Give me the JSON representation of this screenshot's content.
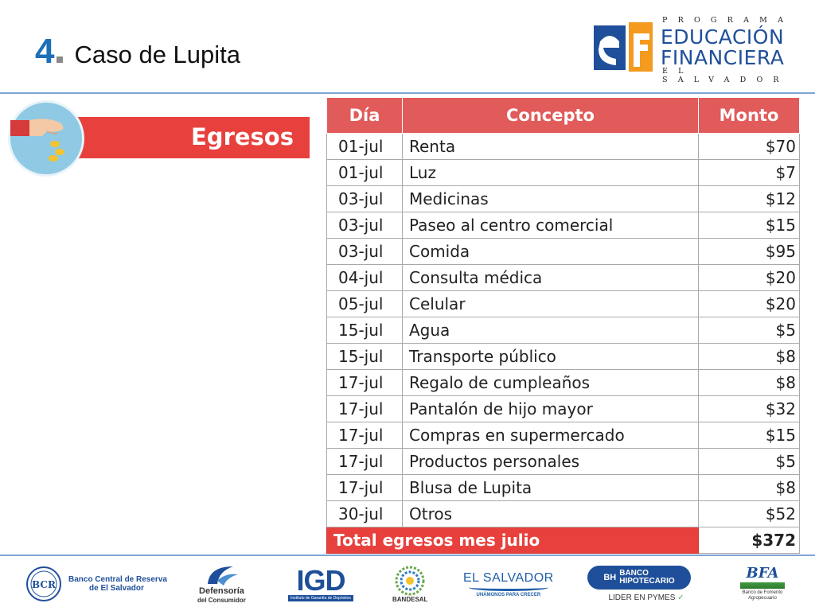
{
  "header": {
    "number": "4",
    "title": "Caso de Lupita"
  },
  "logo": {
    "top_line": "PROGRAMA",
    "line1": "EDUCACIÓN",
    "line2": "FINANCIERA",
    "bottom_line": "EL SALVADOR"
  },
  "banner": {
    "label": "Egresos"
  },
  "table": {
    "headers": [
      "Día",
      "Concepto",
      "Monto"
    ],
    "rows": [
      {
        "day": "01-jul",
        "concept": "Renta",
        "amount": "$70"
      },
      {
        "day": "01-jul",
        "concept": "Luz",
        "amount": "$7"
      },
      {
        "day": "03-jul",
        "concept": "Medicinas",
        "amount": "$12"
      },
      {
        "day": "03-jul",
        "concept": "Paseo al centro comercial",
        "amount": "$15"
      },
      {
        "day": "03-jul",
        "concept": "Comida",
        "amount": "$95"
      },
      {
        "day": "04-jul",
        "concept": "Consulta médica",
        "amount": "$20"
      },
      {
        "day": "05-jul",
        "concept": "Celular",
        "amount": "$20"
      },
      {
        "day": "15-jul",
        "concept": "Agua",
        "amount": "$5"
      },
      {
        "day": "15-jul",
        "concept": "Transporte público",
        "amount": "$8"
      },
      {
        "day": "17-jul",
        "concept": "Regalo de cumpleaños",
        "amount": "$8"
      },
      {
        "day": "17-jul",
        "concept": "Pantalón de hijo mayor",
        "amount": "$32"
      },
      {
        "day": "17-jul",
        "concept": "Compras en supermercado",
        "amount": "$15"
      },
      {
        "day": "17-jul",
        "concept": "Productos personales",
        "amount": "$5"
      },
      {
        "day": "17-jul",
        "concept": "Blusa de Lupita",
        "amount": "$8"
      },
      {
        "day": "30-jul",
        "concept": "Otros",
        "amount": "$52"
      }
    ],
    "total_label": "Total egresos mes julio",
    "total_amount": "$372"
  },
  "footer": {
    "bcr": {
      "mark": "BCR",
      "line1": "Banco Central de Reserva",
      "line2": "de El Salvador"
    },
    "defensoria": {
      "line1": "Defensoría",
      "line2": "del Consumidor"
    },
    "igd": {
      "mark": "IGD",
      "sub": "Instituto de Garantía de Depósitos"
    },
    "bandesal": {
      "label": "BANDESAL"
    },
    "elsalvador": {
      "line1": "EL SALVADOR",
      "line2": "UNÁMONOS PARA CRECER"
    },
    "hipotecario": {
      "mark": "BH",
      "line1": "BANCO",
      "line2": "HIPOTECARIO",
      "tagline": "LIDER EN PYMES"
    },
    "bfa": {
      "mark": "BFA",
      "line1": "Banco de Fomento",
      "line2": "Agropecuario"
    }
  },
  "colors": {
    "accent_blue": "#1f4f9a",
    "header_red": "#e15b5b",
    "banner_red": "#e8413d",
    "circle_blue": "#8fc9e3"
  }
}
